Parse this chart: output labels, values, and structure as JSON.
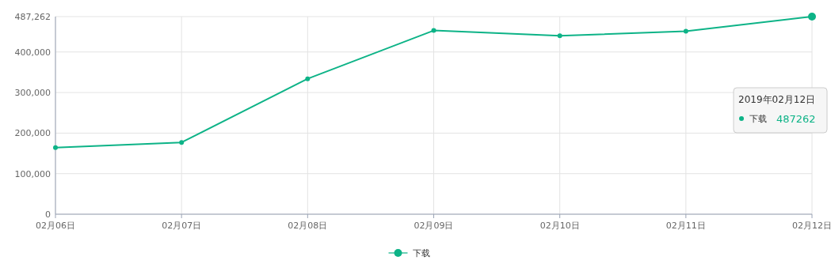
{
  "chart_data": {
    "type": "line",
    "categories": [
      "02月06日",
      "02月07日",
      "02月08日",
      "02月09日",
      "02月10日",
      "02月11日",
      "02月12日"
    ],
    "series": [
      {
        "name": "下载",
        "color": "#0db387",
        "values": [
          164000,
          177000,
          334000,
          453000,
          440000,
          451000,
          487262
        ]
      }
    ],
    "ylim": [
      0,
      487262
    ],
    "yticks": [
      0,
      {
        "value": 100000,
        "label": "100,000"
      },
      {
        "value": 200000,
        "label": "200,000"
      },
      {
        "value": 300000,
        "label": "300,000"
      },
      {
        "value": 400000,
        "label": "400,000"
      },
      {
        "value": 487262,
        "label": "487,262"
      }
    ],
    "grid": true,
    "legend": "bottom",
    "marker": "circle",
    "line_style": "solid",
    "annotations": [
      "2019年02月12日",
      "487262"
    ]
  }
}
